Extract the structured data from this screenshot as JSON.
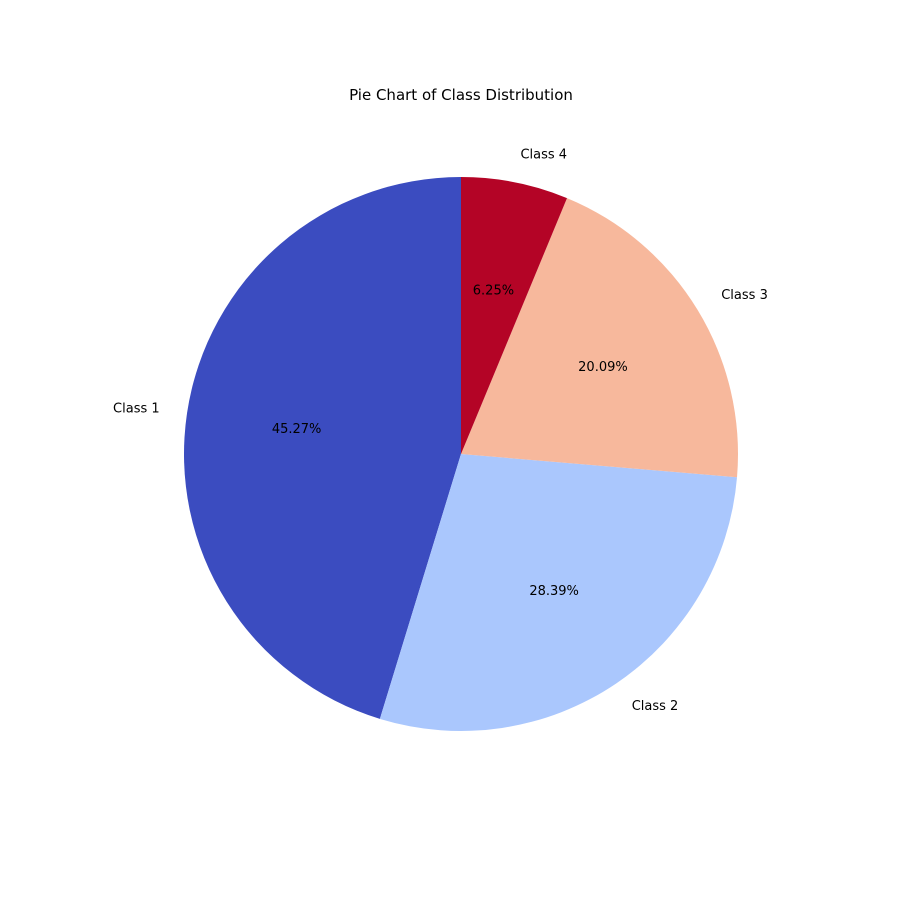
{
  "chart_data": {
    "type": "pie",
    "title": "Pie Chart of Class Distribution",
    "start_angle_deg": 90,
    "direction": "counterclockwise",
    "slices": [
      {
        "label": "Class 1",
        "value": 45.27,
        "pct_label": "45.27%",
        "color": "#3b4cc0"
      },
      {
        "label": "Class 2",
        "value": 28.39,
        "pct_label": "28.39%",
        "color": "#aac7fd"
      },
      {
        "label": "Class 3",
        "value": 20.09,
        "pct_label": "20.09%",
        "color": "#f7b89c"
      },
      {
        "label": "Class 4",
        "value": 6.25,
        "pct_label": "6.25%",
        "color": "#b40426"
      }
    ]
  }
}
